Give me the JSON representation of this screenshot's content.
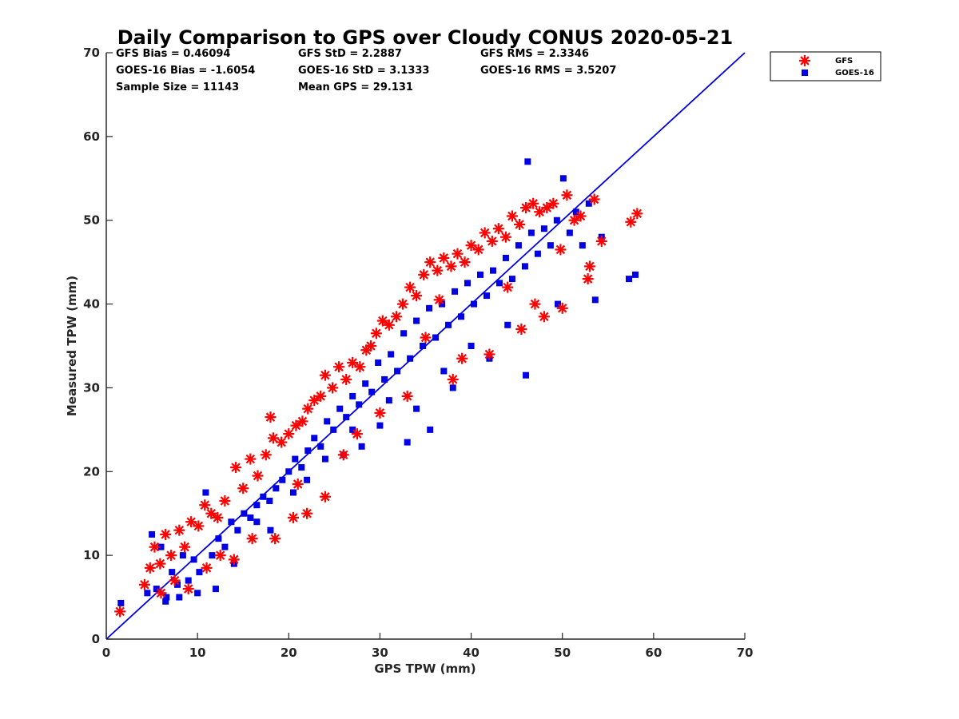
{
  "chart_data": {
    "type": "scatter",
    "title": "Daily Comparison to GPS over Cloudy CONUS 2020-05-21",
    "xlabel": "GPS TPW (mm)",
    "ylabel": "Measured TPW (mm)",
    "xlim": [
      0,
      70
    ],
    "ylim": [
      0,
      70
    ],
    "xticks": [
      "0",
      "10",
      "20",
      "30",
      "40",
      "50",
      "60",
      "70"
    ],
    "yticks": [
      "0",
      "10",
      "20",
      "30",
      "40",
      "50",
      "60",
      "70"
    ],
    "grid": false,
    "legend_position": "outside-top-right",
    "reference_line": {
      "x": [
        0,
        70
      ],
      "y": [
        0,
        70
      ],
      "color": "#0000e6"
    },
    "stats": {
      "gfs_bias": "GFS Bias = 0.46094",
      "gfs_std": "GFS StD = 2.2887",
      "gfs_rms": "GFS RMS = 2.3346",
      "goes_bias": "GOES-16 Bias = -1.6054",
      "goes_std": "GOES-16 StD = 3.1333",
      "goes_rms": "GOES-16 RMS = 3.5207",
      "sample_size": "Sample Size = 11143",
      "mean_gps": "Mean GPS = 29.131"
    },
    "series": [
      {
        "name": "GFS",
        "marker": "asterisk",
        "color": "#ff0000",
        "x": [
          1.5,
          4.2,
          4.8,
          5.3,
          5.9,
          6.5,
          7.1,
          8.0,
          8.6,
          9.3,
          10.1,
          10.8,
          11.5,
          12.2,
          13.0,
          14.2,
          15.0,
          15.8,
          16.6,
          17.5,
          18.0,
          18.3,
          19.2,
          20.0,
          20.8,
          21.5,
          22.1,
          22.8,
          23.5,
          24.0,
          24.8,
          25.5,
          26.3,
          27.0,
          27.8,
          28.5,
          29.0,
          29.6,
          30.3,
          31.0,
          31.8,
          32.5,
          33.3,
          34.0,
          34.8,
          35.5,
          36.3,
          37.0,
          37.8,
          38.5,
          39.3,
          40.0,
          40.8,
          41.5,
          42.3,
          43.0,
          43.8,
          44.5,
          45.3,
          46.0,
          46.8,
          47.5,
          48.3,
          49.0,
          49.8,
          50.5,
          51.3,
          52.0,
          52.8,
          53.5,
          54.3,
          57.5,
          58.2,
          22.0,
          24.0,
          18.5,
          20.5,
          14.0,
          9.0,
          11.0,
          6.0,
          35.0,
          38.0,
          42.0,
          45.5,
          48.0,
          50.0,
          53.0,
          47.0,
          30.0,
          26.0,
          16.0,
          12.5,
          7.5,
          39.0,
          33.0,
          27.5,
          21.0,
          44.0,
          36.5
        ],
        "y": [
          3.3,
          6.5,
          8.5,
          11.0,
          9.0,
          12.5,
          10.0,
          13.0,
          11.0,
          14.0,
          13.5,
          16.0,
          15.0,
          14.5,
          16.5,
          20.5,
          18.0,
          21.5,
          19.5,
          22.0,
          26.5,
          24.0,
          23.5,
          24.5,
          25.5,
          26.0,
          27.5,
          28.5,
          29.0,
          31.5,
          30.0,
          32.5,
          31.0,
          33.0,
          32.5,
          34.5,
          35.0,
          36.5,
          38.0,
          37.5,
          38.5,
          40.0,
          42.0,
          41.0,
          43.5,
          45.0,
          44.0,
          45.5,
          44.5,
          46.0,
          45.0,
          47.0,
          46.5,
          48.5,
          47.5,
          49.0,
          48.0,
          50.5,
          49.5,
          51.5,
          52.0,
          51.0,
          51.5,
          52.0,
          46.5,
          53.0,
          50.0,
          50.5,
          43.0,
          52.5,
          47.5,
          49.8,
          50.8,
          15.0,
          17.0,
          12.0,
          14.5,
          9.5,
          6.0,
          8.5,
          5.5,
          36.0,
          31.0,
          34.0,
          37.0,
          38.5,
          39.5,
          44.5,
          40.0,
          27.0,
          22.0,
          12.0,
          10.0,
          7.0,
          33.5,
          29.0,
          24.5,
          18.5,
          42.0,
          40.5
        ]
      },
      {
        "name": "GOES-16",
        "marker": "square",
        "color": "#0000e6",
        "x": [
          1.6,
          4.5,
          5.0,
          5.5,
          6.0,
          6.6,
          7.2,
          7.8,
          8.4,
          9.0,
          9.6,
          10.2,
          10.9,
          11.6,
          12.3,
          13.0,
          13.7,
          14.4,
          15.1,
          15.8,
          16.5,
          17.2,
          17.9,
          18.6,
          19.3,
          20.0,
          20.7,
          21.4,
          22.1,
          22.8,
          23.5,
          24.2,
          24.9,
          25.6,
          26.3,
          27.0,
          27.7,
          28.4,
          29.1,
          29.8,
          30.5,
          31.2,
          31.9,
          32.6,
          33.3,
          34.0,
          34.7,
          35.4,
          36.1,
          36.8,
          37.5,
          38.2,
          38.9,
          39.6,
          40.3,
          41.0,
          41.7,
          42.4,
          43.1,
          43.8,
          44.5,
          45.2,
          45.9,
          46.6,
          47.3,
          48.0,
          48.7,
          49.4,
          50.1,
          50.8,
          51.5,
          52.2,
          52.9,
          53.6,
          54.3,
          57.3,
          58.0,
          46.2,
          49.5,
          12.0,
          10.0,
          8.0,
          6.5,
          14.0,
          18.0,
          22.0,
          26.0,
          30.0,
          34.0,
          38.0,
          42.0,
          46.0,
          33.0,
          35.5,
          28.0,
          44.0,
          40.0,
          37.0,
          31.0,
          27.0,
          24.0,
          20.5,
          16.5
        ],
        "y": [
          4.3,
          5.5,
          12.5,
          6.0,
          11.0,
          5.0,
          8.0,
          6.5,
          10.0,
          7.0,
          9.5,
          8.0,
          17.5,
          10.0,
          12.0,
          11.0,
          14.0,
          13.0,
          15.0,
          14.5,
          16.0,
          17.0,
          16.5,
          18.0,
          19.0,
          20.0,
          21.5,
          20.5,
          22.5,
          24.0,
          23.0,
          26.0,
          25.0,
          27.5,
          26.5,
          29.0,
          28.0,
          30.5,
          29.5,
          33.0,
          31.0,
          34.0,
          32.0,
          36.5,
          33.5,
          38.0,
          35.0,
          39.5,
          36.0,
          40.0,
          37.5,
          41.5,
          38.5,
          42.5,
          40.0,
          43.5,
          41.0,
          44.0,
          42.5,
          45.5,
          43.0,
          47.0,
          44.5,
          48.5,
          46.0,
          49.0,
          47.0,
          50.0,
          55.0,
          48.5,
          51.0,
          47.0,
          52.0,
          40.5,
          48.0,
          43.0,
          43.5,
          57.0,
          40.0,
          6.0,
          5.5,
          5.0,
          4.5,
          9.0,
          13.0,
          19.0,
          22.0,
          25.5,
          27.5,
          30.0,
          33.5,
          31.5,
          23.5,
          25.0,
          23.0,
          37.5,
          35.0,
          32.0,
          28.5,
          25.0,
          21.5,
          17.5,
          14.0
        ]
      }
    ]
  }
}
